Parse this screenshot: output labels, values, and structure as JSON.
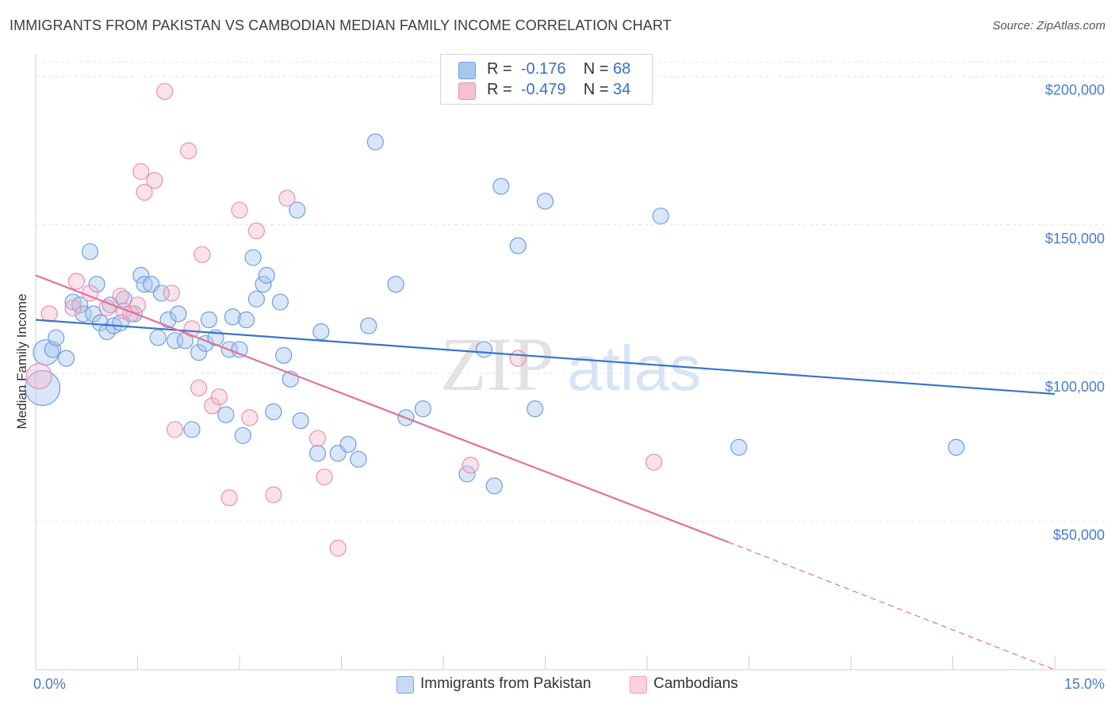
{
  "title": "IMMIGRANTS FROM PAKISTAN VS CAMBODIAN MEDIAN FAMILY INCOME CORRELATION CHART",
  "source": "Source: ZipAtlas.com",
  "watermark": {
    "zip": "ZIP",
    "atlas": "atlas"
  },
  "colors": {
    "blue": "#3a73c9",
    "blue_fill": "#a9c8f0",
    "pink": "#e0709a",
    "pink_fill": "#f5b7cb"
  },
  "legend": {
    "rows": [
      {
        "r_label": "R =",
        "r_value": "-0.176",
        "n_label": "N =",
        "n_value": "68",
        "color": "#a9c8f0",
        "border": "#6f9ee0"
      },
      {
        "r_label": "R =",
        "r_value": "-0.479",
        "n_label": "N =",
        "n_value": "34",
        "color": "#f5c0d0",
        "border": "#e890ad"
      }
    ]
  },
  "chart_data": {
    "type": "scatter",
    "title": "IMMIGRANTS FROM PAKISTAN VS CAMBODIAN MEDIAN FAMILY INCOME CORRELATION CHART",
    "xlabel": "",
    "ylabel": "Median Family Income",
    "xlim": [
      0,
      15
    ],
    "ylim": [
      0,
      205000
    ],
    "x_tick_labels": [
      "0.0%",
      "15.0%"
    ],
    "y_ticks": [
      50000,
      100000,
      150000,
      200000
    ],
    "y_tick_labels": [
      "$50,000",
      "$100,000",
      "$150,000",
      "$200,000"
    ],
    "grid": true,
    "legend_position": "top-center",
    "series": [
      {
        "name": "Immigrants from Pakistan",
        "color": "#3a73c9",
        "trend": {
          "x": [
            0,
            15
          ],
          "y": [
            118000,
            93000
          ],
          "dashed_from": null
        },
        "points": [
          [
            0.1,
            95000,
            22
          ],
          [
            0.15,
            107000,
            16
          ],
          [
            0.25,
            108000,
            10
          ],
          [
            0.3,
            112000,
            10
          ],
          [
            0.45,
            105000,
            10
          ],
          [
            0.55,
            124000,
            10
          ],
          [
            0.65,
            123000,
            10
          ],
          [
            0.7,
            120000,
            10
          ],
          [
            0.8,
            141000,
            10
          ],
          [
            0.85,
            120000,
            10
          ],
          [
            0.9,
            130000,
            10
          ],
          [
            0.95,
            117000,
            10
          ],
          [
            1.05,
            114000,
            10
          ],
          [
            1.1,
            123000,
            10
          ],
          [
            1.15,
            116000,
            10
          ],
          [
            1.25,
            117000,
            10
          ],
          [
            1.3,
            125000,
            10
          ],
          [
            1.45,
            120000,
            10
          ],
          [
            1.55,
            133000,
            10
          ],
          [
            1.6,
            130000,
            10
          ],
          [
            1.7,
            130000,
            10
          ],
          [
            1.8,
            112000,
            10
          ],
          [
            1.85,
            127000,
            10
          ],
          [
            1.95,
            118000,
            10
          ],
          [
            2.05,
            111000,
            10
          ],
          [
            2.1,
            120000,
            10
          ],
          [
            2.2,
            111000,
            10
          ],
          [
            2.3,
            81000,
            10
          ],
          [
            2.4,
            107000,
            10
          ],
          [
            2.5,
            110000,
            10
          ],
          [
            2.55,
            118000,
            10
          ],
          [
            2.65,
            112000,
            10
          ],
          [
            2.8,
            86000,
            10
          ],
          [
            2.85,
            108000,
            10
          ],
          [
            2.9,
            119000,
            10
          ],
          [
            3.0,
            108000,
            10
          ],
          [
            3.05,
            79000,
            10
          ],
          [
            3.1,
            118000,
            10
          ],
          [
            3.2,
            139000,
            10
          ],
          [
            3.25,
            125000,
            10
          ],
          [
            3.35,
            130000,
            10
          ],
          [
            3.4,
            133000,
            10
          ],
          [
            3.5,
            87000,
            10
          ],
          [
            3.6,
            124000,
            10
          ],
          [
            3.65,
            106000,
            10
          ],
          [
            3.75,
            98000,
            10
          ],
          [
            3.85,
            155000,
            10
          ],
          [
            3.9,
            84000,
            10
          ],
          [
            4.15,
            73000,
            10
          ],
          [
            4.2,
            114000,
            10
          ],
          [
            4.45,
            73000,
            10
          ],
          [
            4.6,
            76000,
            10
          ],
          [
            4.75,
            71000,
            10
          ],
          [
            4.9,
            116000,
            10
          ],
          [
            5.0,
            178000,
            10
          ],
          [
            5.3,
            130000,
            10
          ],
          [
            5.45,
            85000,
            10
          ],
          [
            5.7,
            88000,
            10
          ],
          [
            6.35,
            66000,
            10
          ],
          [
            6.6,
            108000,
            10
          ],
          [
            6.75,
            62000,
            10
          ],
          [
            6.85,
            163000,
            10
          ],
          [
            7.1,
            143000,
            10
          ],
          [
            7.35,
            88000,
            10
          ],
          [
            7.5,
            158000,
            10
          ],
          [
            9.2,
            153000,
            10
          ],
          [
            10.35,
            75000,
            10
          ],
          [
            13.55,
            75000,
            10
          ]
        ]
      },
      {
        "name": "Cambodians",
        "color": "#e0709a",
        "trend": {
          "x": [
            0,
            10.2
          ],
          "y": [
            133000,
            43000
          ],
          "dashed_to": [
            15,
            0
          ]
        },
        "points": [
          [
            0.05,
            99000,
            16
          ],
          [
            0.2,
            120000,
            10
          ],
          [
            0.55,
            122000,
            10
          ],
          [
            0.6,
            131000,
            10
          ],
          [
            0.8,
            127000,
            10
          ],
          [
            1.05,
            122000,
            10
          ],
          [
            1.25,
            126000,
            10
          ],
          [
            1.3,
            121000,
            10
          ],
          [
            1.4,
            120000,
            10
          ],
          [
            1.5,
            123000,
            10
          ],
          [
            1.55,
            168000,
            10
          ],
          [
            1.6,
            161000,
            10
          ],
          [
            1.75,
            165000,
            10
          ],
          [
            1.9,
            195000,
            10
          ],
          [
            2.0,
            127000,
            10
          ],
          [
            2.05,
            81000,
            10
          ],
          [
            2.25,
            175000,
            10
          ],
          [
            2.3,
            115000,
            10
          ],
          [
            2.4,
            95000,
            10
          ],
          [
            2.45,
            140000,
            10
          ],
          [
            2.6,
            89000,
            10
          ],
          [
            2.7,
            92000,
            10
          ],
          [
            2.85,
            58000,
            10
          ],
          [
            3.0,
            155000,
            10
          ],
          [
            3.15,
            85000,
            10
          ],
          [
            3.25,
            148000,
            10
          ],
          [
            3.5,
            59000,
            10
          ],
          [
            3.7,
            159000,
            10
          ],
          [
            4.15,
            78000,
            10
          ],
          [
            4.25,
            65000,
            10
          ],
          [
            4.45,
            41000,
            10
          ],
          [
            6.4,
            69000,
            10
          ],
          [
            7.1,
            105000,
            10
          ],
          [
            9.1,
            70000,
            10
          ]
        ]
      }
    ]
  }
}
